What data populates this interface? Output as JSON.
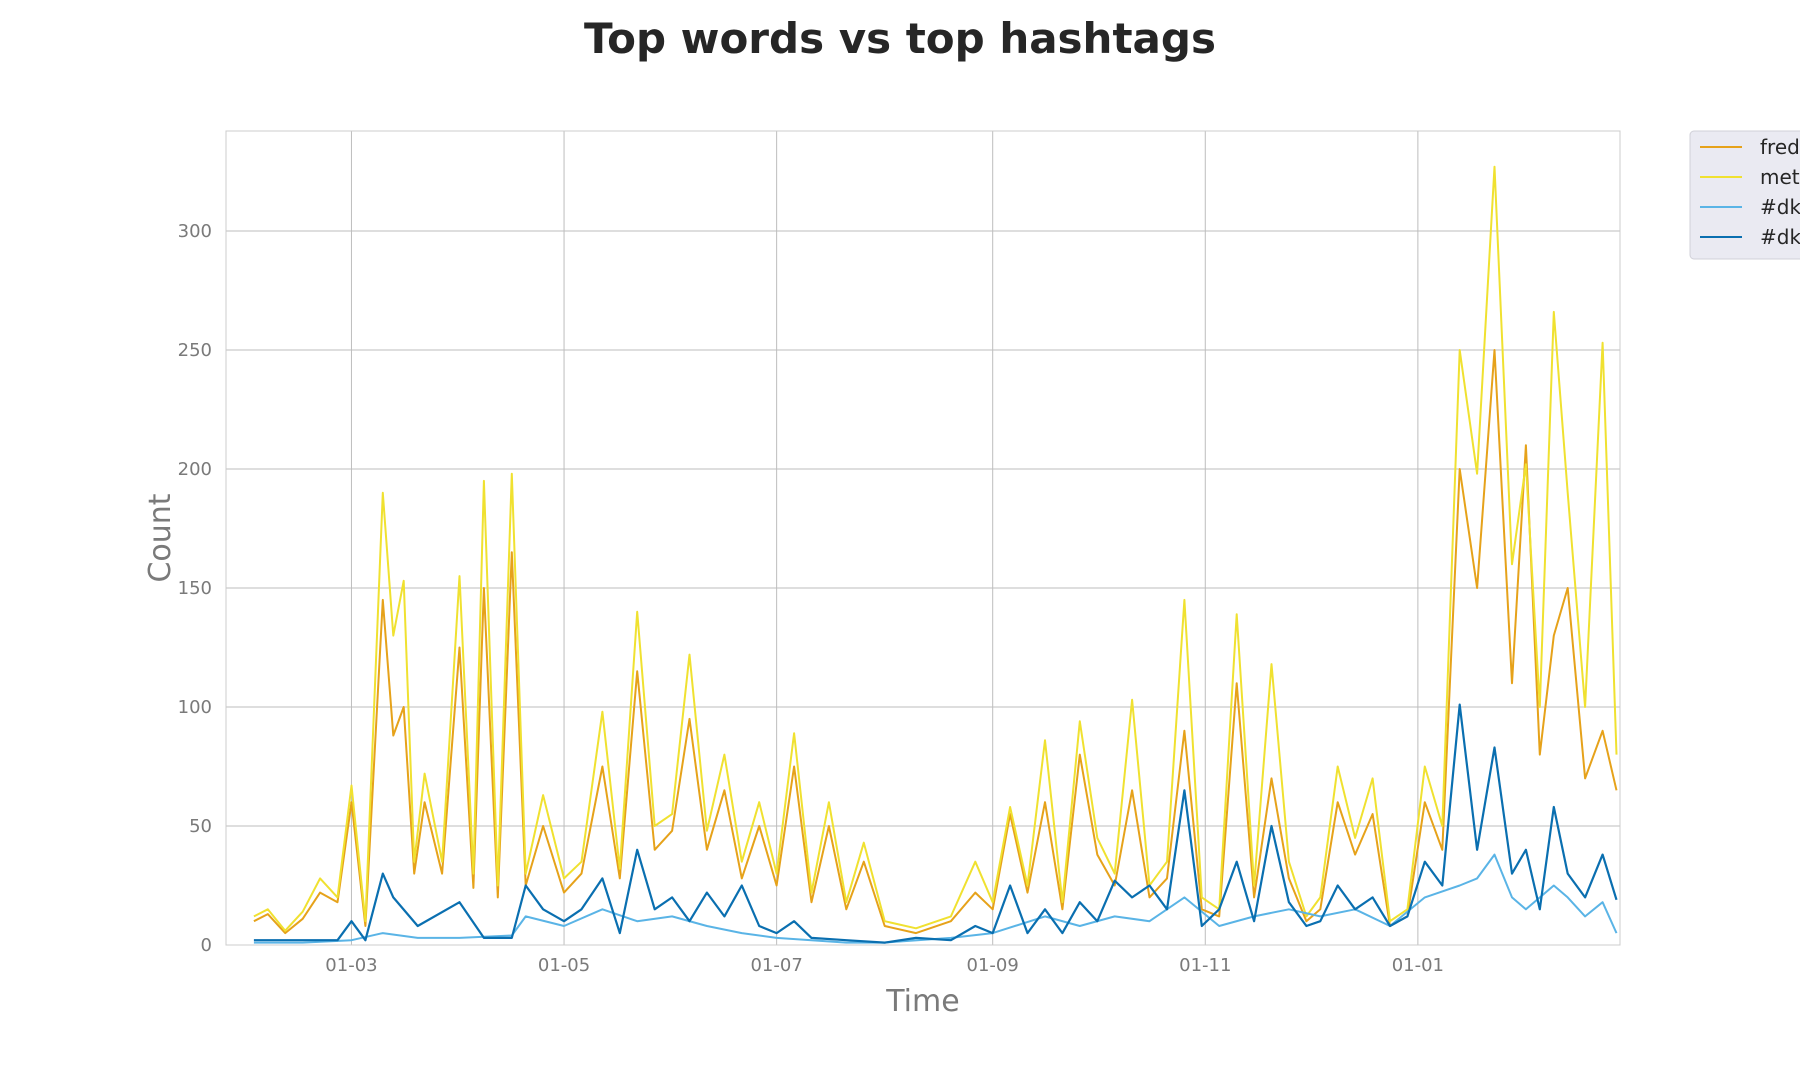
{
  "chart_data": {
    "type": "line",
    "title": "Top words vs top hashtags",
    "xlabel": "Time",
    "ylabel": "Count",
    "x_ticks": [
      "01-03",
      "01-05",
      "01-07",
      "01-09",
      "01-11",
      "01-01"
    ],
    "y_ticks": [
      0,
      50,
      100,
      150,
      200,
      250,
      300
    ],
    "xlim": [
      "2018-01-24",
      "2019-02-28"
    ],
    "ylim": [
      0,
      342
    ],
    "grid": true,
    "legend_position": "outside top-right (clipped)",
    "series": [
      {
        "name": "fred",
        "color": "#e6a21a",
        "points": [
          [
            "2018-02-01",
            10
          ],
          [
            "2018-02-05",
            13
          ],
          [
            "2018-02-10",
            5
          ],
          [
            "2018-02-15",
            11
          ],
          [
            "2018-02-20",
            22
          ],
          [
            "2018-02-25",
            18
          ],
          [
            "2018-03-01",
            60
          ],
          [
            "2018-03-05",
            8
          ],
          [
            "2018-03-10",
            145
          ],
          [
            "2018-03-13",
            88
          ],
          [
            "2018-03-16",
            100
          ],
          [
            "2018-03-19",
            30
          ],
          [
            "2018-03-22",
            60
          ],
          [
            "2018-03-27",
            30
          ],
          [
            "2018-04-01",
            125
          ],
          [
            "2018-04-05",
            24
          ],
          [
            "2018-04-08",
            150
          ],
          [
            "2018-04-12",
            20
          ],
          [
            "2018-04-16",
            165
          ],
          [
            "2018-04-20",
            25
          ],
          [
            "2018-04-25",
            50
          ],
          [
            "2018-05-01",
            22
          ],
          [
            "2018-05-06",
            30
          ],
          [
            "2018-05-12",
            75
          ],
          [
            "2018-05-17",
            28
          ],
          [
            "2018-05-22",
            115
          ],
          [
            "2018-05-27",
            40
          ],
          [
            "2018-06-01",
            48
          ],
          [
            "2018-06-06",
            95
          ],
          [
            "2018-06-11",
            40
          ],
          [
            "2018-06-16",
            65
          ],
          [
            "2018-06-21",
            28
          ],
          [
            "2018-06-26",
            50
          ],
          [
            "2018-07-01",
            25
          ],
          [
            "2018-07-06",
            75
          ],
          [
            "2018-07-11",
            18
          ],
          [
            "2018-07-16",
            50
          ],
          [
            "2018-07-21",
            15
          ],
          [
            "2018-07-26",
            35
          ],
          [
            "2018-08-01",
            8
          ],
          [
            "2018-08-10",
            5
          ],
          [
            "2018-08-20",
            10
          ],
          [
            "2018-08-27",
            22
          ],
          [
            "2018-09-01",
            15
          ],
          [
            "2018-09-06",
            55
          ],
          [
            "2018-09-11",
            22
          ],
          [
            "2018-09-16",
            60
          ],
          [
            "2018-09-21",
            15
          ],
          [
            "2018-09-26",
            80
          ],
          [
            "2018-10-01",
            38
          ],
          [
            "2018-10-06",
            25
          ],
          [
            "2018-10-11",
            65
          ],
          [
            "2018-10-16",
            20
          ],
          [
            "2018-10-21",
            28
          ],
          [
            "2018-10-26",
            90
          ],
          [
            "2018-10-31",
            15
          ],
          [
            "2018-11-05",
            12
          ],
          [
            "2018-11-10",
            110
          ],
          [
            "2018-11-15",
            20
          ],
          [
            "2018-11-20",
            70
          ],
          [
            "2018-11-25",
            28
          ],
          [
            "2018-11-30",
            10
          ],
          [
            "2018-12-04",
            15
          ],
          [
            "2018-12-09",
            60
          ],
          [
            "2018-12-14",
            38
          ],
          [
            "2018-12-19",
            55
          ],
          [
            "2018-12-24",
            8
          ],
          [
            "2018-12-29",
            12
          ],
          [
            "2019-01-03",
            60
          ],
          [
            "2019-01-08",
            40
          ],
          [
            "2019-01-13",
            200
          ],
          [
            "2019-01-18",
            150
          ],
          [
            "2019-01-23",
            250
          ],
          [
            "2019-01-28",
            110
          ],
          [
            "2019-02-01",
            210
          ],
          [
            "2019-02-05",
            80
          ],
          [
            "2019-02-09",
            130
          ],
          [
            "2019-02-13",
            150
          ],
          [
            "2019-02-18",
            70
          ],
          [
            "2019-02-23",
            90
          ],
          [
            "2019-02-27",
            65
          ]
        ]
      },
      {
        "name": "met",
        "color": "#f0e130",
        "points": [
          [
            "2018-02-01",
            12
          ],
          [
            "2018-02-05",
            15
          ],
          [
            "2018-02-10",
            6
          ],
          [
            "2018-02-15",
            14
          ],
          [
            "2018-02-20",
            28
          ],
          [
            "2018-02-25",
            20
          ],
          [
            "2018-03-01",
            67
          ],
          [
            "2018-03-05",
            10
          ],
          [
            "2018-03-10",
            190
          ],
          [
            "2018-03-13",
            130
          ],
          [
            "2018-03-16",
            153
          ],
          [
            "2018-03-19",
            35
          ],
          [
            "2018-03-22",
            72
          ],
          [
            "2018-03-27",
            35
          ],
          [
            "2018-04-01",
            155
          ],
          [
            "2018-04-05",
            30
          ],
          [
            "2018-04-08",
            195
          ],
          [
            "2018-04-12",
            25
          ],
          [
            "2018-04-16",
            198
          ],
          [
            "2018-04-20",
            30
          ],
          [
            "2018-04-25",
            63
          ],
          [
            "2018-05-01",
            28
          ],
          [
            "2018-05-06",
            35
          ],
          [
            "2018-05-12",
            98
          ],
          [
            "2018-05-17",
            32
          ],
          [
            "2018-05-22",
            140
          ],
          [
            "2018-05-27",
            50
          ],
          [
            "2018-06-01",
            55
          ],
          [
            "2018-06-06",
            122
          ],
          [
            "2018-06-11",
            48
          ],
          [
            "2018-06-16",
            80
          ],
          [
            "2018-06-21",
            35
          ],
          [
            "2018-06-26",
            60
          ],
          [
            "2018-07-01",
            30
          ],
          [
            "2018-07-06",
            89
          ],
          [
            "2018-07-11",
            22
          ],
          [
            "2018-07-16",
            60
          ],
          [
            "2018-07-21",
            18
          ],
          [
            "2018-07-26",
            43
          ],
          [
            "2018-08-01",
            10
          ],
          [
            "2018-08-10",
            7
          ],
          [
            "2018-08-20",
            12
          ],
          [
            "2018-08-27",
            35
          ],
          [
            "2018-09-01",
            18
          ],
          [
            "2018-09-06",
            58
          ],
          [
            "2018-09-11",
            25
          ],
          [
            "2018-09-16",
            86
          ],
          [
            "2018-09-21",
            18
          ],
          [
            "2018-09-26",
            94
          ],
          [
            "2018-10-01",
            45
          ],
          [
            "2018-10-06",
            30
          ],
          [
            "2018-10-11",
            103
          ],
          [
            "2018-10-16",
            25
          ],
          [
            "2018-10-21",
            35
          ],
          [
            "2018-10-26",
            145
          ],
          [
            "2018-10-31",
            20
          ],
          [
            "2018-11-05",
            15
          ],
          [
            "2018-11-10",
            139
          ],
          [
            "2018-11-15",
            25
          ],
          [
            "2018-11-20",
            118
          ],
          [
            "2018-11-25",
            35
          ],
          [
            "2018-11-30",
            12
          ],
          [
            "2018-12-04",
            20
          ],
          [
            "2018-12-09",
            75
          ],
          [
            "2018-12-14",
            45
          ],
          [
            "2018-12-19",
            70
          ],
          [
            "2018-12-24",
            10
          ],
          [
            "2018-12-29",
            15
          ],
          [
            "2019-01-03",
            75
          ],
          [
            "2019-01-08",
            50
          ],
          [
            "2019-01-13",
            250
          ],
          [
            "2019-01-18",
            198
          ],
          [
            "2019-01-23",
            327
          ],
          [
            "2019-01-28",
            160
          ],
          [
            "2019-02-01",
            202
          ],
          [
            "2019-02-05",
            100
          ],
          [
            "2019-02-09",
            266
          ],
          [
            "2019-02-13",
            190
          ],
          [
            "2019-02-18",
            100
          ],
          [
            "2019-02-23",
            253
          ],
          [
            "2019-02-27",
            80
          ]
        ]
      },
      {
        "name": "#dk",
        "color": "#5ab4e6",
        "points": [
          [
            "2018-02-01",
            1
          ],
          [
            "2018-02-15",
            1
          ],
          [
            "2018-03-01",
            2
          ],
          [
            "2018-03-10",
            5
          ],
          [
            "2018-03-20",
            3
          ],
          [
            "2018-04-01",
            3
          ],
          [
            "2018-04-16",
            4
          ],
          [
            "2018-04-20",
            12
          ],
          [
            "2018-05-01",
            8
          ],
          [
            "2018-05-12",
            15
          ],
          [
            "2018-05-22",
            10
          ],
          [
            "2018-06-01",
            12
          ],
          [
            "2018-06-11",
            8
          ],
          [
            "2018-06-21",
            5
          ],
          [
            "2018-07-01",
            3
          ],
          [
            "2018-07-11",
            2
          ],
          [
            "2018-07-21",
            1
          ],
          [
            "2018-08-01",
            1
          ],
          [
            "2018-08-20",
            3
          ],
          [
            "2018-09-01",
            5
          ],
          [
            "2018-09-16",
            12
          ],
          [
            "2018-09-26",
            8
          ],
          [
            "2018-10-06",
            12
          ],
          [
            "2018-10-16",
            10
          ],
          [
            "2018-10-26",
            20
          ],
          [
            "2018-11-05",
            8
          ],
          [
            "2018-11-15",
            12
          ],
          [
            "2018-11-25",
            15
          ],
          [
            "2018-12-04",
            12
          ],
          [
            "2018-12-14",
            15
          ],
          [
            "2018-12-24",
            8
          ],
          [
            "2019-01-03",
            20
          ],
          [
            "2019-01-13",
            25
          ],
          [
            "2019-01-18",
            28
          ],
          [
            "2019-01-23",
            38
          ],
          [
            "2019-01-28",
            20
          ],
          [
            "2019-02-01",
            15
          ],
          [
            "2019-02-09",
            25
          ],
          [
            "2019-02-13",
            20
          ],
          [
            "2019-02-18",
            12
          ],
          [
            "2019-02-23",
            18
          ],
          [
            "2019-02-27",
            5
          ]
        ]
      },
      {
        "name": "#dk",
        "color": "#0a6fb0",
        "points": [
          [
            "2018-02-01",
            2
          ],
          [
            "2018-02-15",
            2
          ],
          [
            "2018-02-25",
            2
          ],
          [
            "2018-03-01",
            10
          ],
          [
            "2018-03-05",
            2
          ],
          [
            "2018-03-10",
            30
          ],
          [
            "2018-03-13",
            20
          ],
          [
            "2018-03-20",
            8
          ],
          [
            "2018-04-01",
            18
          ],
          [
            "2018-04-08",
            3
          ],
          [
            "2018-04-16",
            3
          ],
          [
            "2018-04-20",
            25
          ],
          [
            "2018-04-25",
            15
          ],
          [
            "2018-05-01",
            10
          ],
          [
            "2018-05-06",
            15
          ],
          [
            "2018-05-12",
            28
          ],
          [
            "2018-05-17",
            5
          ],
          [
            "2018-05-22",
            40
          ],
          [
            "2018-05-27",
            15
          ],
          [
            "2018-06-01",
            20
          ],
          [
            "2018-06-06",
            10
          ],
          [
            "2018-06-11",
            22
          ],
          [
            "2018-06-16",
            12
          ],
          [
            "2018-06-21",
            25
          ],
          [
            "2018-06-26",
            8
          ],
          [
            "2018-07-01",
            5
          ],
          [
            "2018-07-06",
            10
          ],
          [
            "2018-07-11",
            3
          ],
          [
            "2018-07-21",
            2
          ],
          [
            "2018-08-01",
            1
          ],
          [
            "2018-08-10",
            3
          ],
          [
            "2018-08-20",
            2
          ],
          [
            "2018-08-27",
            8
          ],
          [
            "2018-09-01",
            5
          ],
          [
            "2018-09-06",
            25
          ],
          [
            "2018-09-11",
            5
          ],
          [
            "2018-09-16",
            15
          ],
          [
            "2018-09-21",
            5
          ],
          [
            "2018-09-26",
            18
          ],
          [
            "2018-10-01",
            10
          ],
          [
            "2018-10-06",
            27
          ],
          [
            "2018-10-11",
            20
          ],
          [
            "2018-10-16",
            25
          ],
          [
            "2018-10-21",
            15
          ],
          [
            "2018-10-26",
            65
          ],
          [
            "2018-10-31",
            8
          ],
          [
            "2018-11-05",
            15
          ],
          [
            "2018-11-10",
            35
          ],
          [
            "2018-11-15",
            10
          ],
          [
            "2018-11-20",
            50
          ],
          [
            "2018-11-25",
            18
          ],
          [
            "2018-11-30",
            8
          ],
          [
            "2018-12-04",
            10
          ],
          [
            "2018-12-09",
            25
          ],
          [
            "2018-12-14",
            15
          ],
          [
            "2018-12-19",
            20
          ],
          [
            "2018-12-24",
            8
          ],
          [
            "2018-12-29",
            12
          ],
          [
            "2019-01-03",
            35
          ],
          [
            "2019-01-08",
            25
          ],
          [
            "2019-01-13",
            101
          ],
          [
            "2019-01-18",
            40
          ],
          [
            "2019-01-23",
            83
          ],
          [
            "2019-01-28",
            30
          ],
          [
            "2019-02-01",
            40
          ],
          [
            "2019-02-05",
            15
          ],
          [
            "2019-02-09",
            58
          ],
          [
            "2019-02-13",
            30
          ],
          [
            "2019-02-18",
            20
          ],
          [
            "2019-02-23",
            38
          ],
          [
            "2019-02-27",
            19
          ]
        ]
      }
    ]
  }
}
